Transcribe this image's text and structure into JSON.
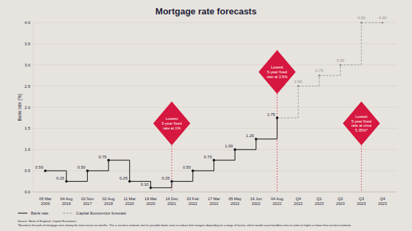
{
  "chart_data": {
    "type": "step",
    "title": "Mortgage rate forecasts",
    "y_label": "Bank rate (%)",
    "categories": [
      "05 Mar 2009",
      "04 Aug 2016",
      "02 Nov 2017",
      "02 Aug 2018",
      "11 Mar 2020",
      "19 Mar 2020",
      "16 Dec 2021",
      "03 Feb 2022",
      "17 Mar 2022",
      "05 May 2022",
      "16 Jun 2022",
      "04 Aug 2022",
      "Q4 2022",
      "Q1 2023",
      "Q2 2023",
      "Q3 2023",
      "Q4 2023"
    ],
    "series": [
      {
        "name": "Bank rate",
        "color": "#1b1b1b",
        "line_style": "solid",
        "marker": "circle",
        "values": [
          0.5,
          0.25,
          0.5,
          0.75,
          0.25,
          0.1,
          0.25,
          0.5,
          0.75,
          1.0,
          1.25,
          1.75,
          null,
          null,
          null,
          null,
          null
        ],
        "value_labels": [
          "0.50",
          "0.25",
          "0.50",
          "0.75",
          "0.25",
          "0.10",
          "0.25",
          "0.50",
          "0.75",
          "1.00",
          "1.25",
          "1.75",
          null,
          null,
          null,
          null,
          null
        ]
      },
      {
        "name": "Capital Economics forecast",
        "color": "#949494",
        "line_style": "dashed",
        "marker": "circle",
        "values": [
          null,
          null,
          null,
          null,
          null,
          null,
          null,
          null,
          null,
          null,
          null,
          1.75,
          2.5,
          2.75,
          3.0,
          4.0,
          4.0
        ],
        "value_labels": [
          null,
          null,
          null,
          null,
          null,
          null,
          null,
          null,
          null,
          null,
          null,
          null,
          "2.50",
          "2.75",
          "3.00",
          "4.00",
          "4.00"
        ]
      }
    ],
    "ylim": [
      0,
      4
    ],
    "yticks": [
      {
        "value": 0,
        "label": "0.0"
      },
      0.5,
      {
        "value": 1,
        "label": "1.0"
      },
      1.5,
      {
        "value": 2,
        "label": "2.0"
      },
      2.5,
      {
        "value": 3,
        "label": "3.0"
      },
      3.5,
      {
        "value": 4,
        "label": "4.0"
      }
    ],
    "grid": true,
    "data_labels": true,
    "legend": "bottom-left",
    "annotations": [
      {
        "x": "16 Dec 2021",
        "lines": [
          "Lowest",
          "5-year fixed",
          "rate at 1%"
        ]
      },
      {
        "x": "04 Aug 2022",
        "lines": [
          "Lowest",
          "5-year fixed",
          "rate at 3.5%"
        ]
      },
      {
        "x": "Q3 2023",
        "lines": [
          "Lowest",
          "5-year fixed",
          "rate at circa",
          "5.35%*"
        ]
      }
    ],
    "source": "Source: Bank of England, Capital Economics",
    "footnote": "*Based on the path of mortgage rates during the most recent six months. This is our best estimate, but it's possible banks raise or reduce their margins depending on a range of factors, which would cause headline rates to come in higher or lower than our best estimate."
  }
}
